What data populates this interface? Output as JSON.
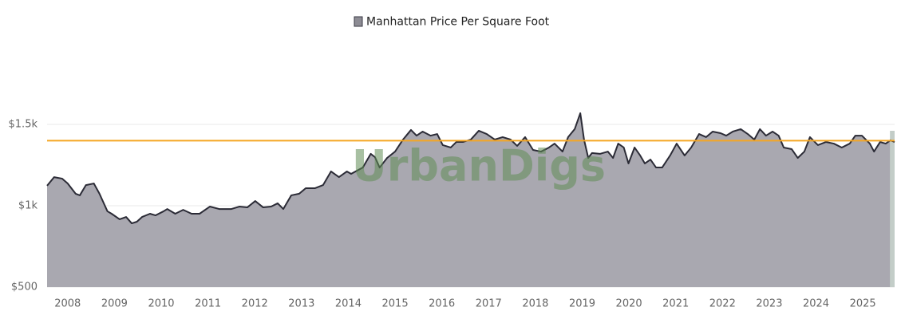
{
  "chart_data": {
    "type": "area",
    "watermark": "UrbanDigs",
    "x": [
      2007.56,
      2007.71,
      2007.88,
      2008.0,
      2008.17,
      2008.26,
      2008.39,
      2008.56,
      2008.68,
      2008.85,
      2008.94,
      2009.11,
      2009.25,
      2009.37,
      2009.48,
      2009.59,
      2009.76,
      2009.88,
      2010.05,
      2010.13,
      2010.3,
      2010.47,
      2010.65,
      2010.82,
      2011.04,
      2011.24,
      2011.5,
      2011.67,
      2011.84,
      2012.01,
      2012.18,
      2012.35,
      2012.49,
      2012.61,
      2012.78,
      2012.95,
      2013.09,
      2013.29,
      2013.46,
      2013.63,
      2013.8,
      2013.97,
      2014.06,
      2014.31,
      2014.48,
      2014.57,
      2014.67,
      2014.83,
      2015.0,
      2015.17,
      2015.34,
      2015.46,
      2015.59,
      2015.76,
      2015.9,
      2016.02,
      2016.19,
      2016.31,
      2016.45,
      2016.62,
      2016.79,
      2016.96,
      2017.13,
      2017.3,
      2017.47,
      2017.61,
      2017.78,
      2017.95,
      2018.12,
      2018.29,
      2018.41,
      2018.58,
      2018.7,
      2018.84,
      2018.96,
      2019.04,
      2019.13,
      2019.21,
      2019.38,
      2019.55,
      2019.66,
      2019.77,
      2019.89,
      2019.99,
      2020.12,
      2020.24,
      2020.34,
      2020.46,
      2020.58,
      2020.71,
      2020.88,
      2021.02,
      2021.19,
      2021.33,
      2021.5,
      2021.65,
      2021.79,
      2021.96,
      2022.08,
      2022.22,
      2022.39,
      2022.54,
      2022.68,
      2022.8,
      2022.93,
      2023.07,
      2023.2,
      2023.31,
      2023.48,
      2023.61,
      2023.75,
      2023.87,
      2024.04,
      2024.21,
      2024.38,
      2024.55,
      2024.72,
      2024.84,
      2024.98,
      2025.15,
      2025.24,
      2025.37,
      2025.49,
      2025.59,
      2025.68
    ],
    "series": [
      {
        "name": "Manhattan Price Per Square Foot",
        "color": "#a9a8b0",
        "line_color": "#2b2b36",
        "values": [
          1123,
          1176,
          1167,
          1137,
          1074,
          1064,
          1127,
          1137,
          1074,
          966,
          951,
          917,
          931,
          892,
          902,
          931,
          951,
          941,
          966,
          980,
          951,
          975,
          951,
          951,
          995,
          980,
          980,
          995,
          990,
          1029,
          990,
          995,
          1015,
          980,
          1064,
          1074,
          1108,
          1108,
          1127,
          1211,
          1176,
          1211,
          1196,
          1235,
          1319,
          1299,
          1235,
          1294,
          1333,
          1407,
          1466,
          1431,
          1456,
          1431,
          1441,
          1373,
          1358,
          1392,
          1392,
          1407,
          1461,
          1441,
          1407,
          1422,
          1407,
          1368,
          1422,
          1343,
          1333,
          1358,
          1382,
          1333,
          1422,
          1471,
          1569,
          1407,
          1294,
          1324,
          1319,
          1333,
          1294,
          1382,
          1358,
          1260,
          1358,
          1309,
          1260,
          1284,
          1235,
          1235,
          1309,
          1382,
          1309,
          1358,
          1441,
          1422,
          1456,
          1446,
          1431,
          1456,
          1471,
          1441,
          1407,
          1471,
          1431,
          1456,
          1431,
          1358,
          1348,
          1294,
          1333,
          1422,
          1373,
          1392,
          1382,
          1358,
          1382,
          1431,
          1431,
          1382,
          1333,
          1392,
          1382,
          1402,
          1392
        ]
      }
    ],
    "reference_line": {
      "value": 1400,
      "color": "#f5a623"
    },
    "highlight": {
      "xlim": [
        2025.58,
        2025.68
      ],
      "color": "#c3cdc8"
    },
    "xlim": [
      2007.56,
      2025.68
    ],
    "xticks": [
      2008,
      2009,
      2010,
      2011,
      2012,
      2013,
      2014,
      2015,
      2016,
      2017,
      2018,
      2019,
      2020,
      2021,
      2022,
      2023,
      2024,
      2025
    ],
    "ylim": [
      500,
      2000
    ],
    "yticks": [
      {
        "value": 500,
        "label": "$500"
      },
      {
        "value": 1000,
        "label": "$1k"
      },
      {
        "value": 1500,
        "label": "$1.5k"
      }
    ],
    "grid": true,
    "legend": "top"
  }
}
